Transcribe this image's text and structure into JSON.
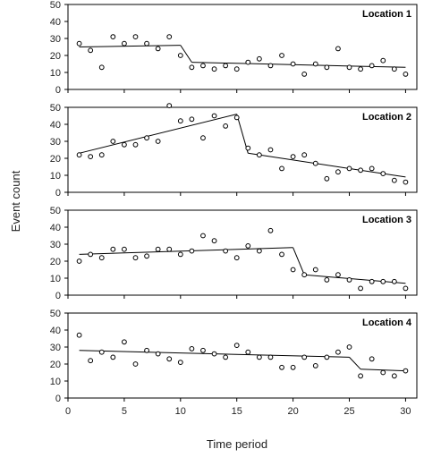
{
  "chart_data": {
    "type": "scatter",
    "xlabel": "Time period",
    "ylabel": "Event count",
    "xlim": [
      0,
      31
    ],
    "x_ticks": [
      0,
      5,
      10,
      15,
      20,
      25,
      30
    ],
    "ylim": [
      0,
      50
    ],
    "y_ticks": [
      0,
      10,
      20,
      30,
      40,
      50
    ],
    "grid": false,
    "panels": [
      {
        "title": "Location 1",
        "points": [
          [
            1,
            27
          ],
          [
            2,
            23
          ],
          [
            3,
            13
          ],
          [
            4,
            31
          ],
          [
            5,
            27
          ],
          [
            6,
            31
          ],
          [
            7,
            27
          ],
          [
            8,
            24
          ],
          [
            9,
            31
          ],
          [
            10,
            20
          ],
          [
            11,
            13
          ],
          [
            12,
            14
          ],
          [
            13,
            12
          ],
          [
            14,
            14
          ],
          [
            15,
            12
          ],
          [
            16,
            16
          ],
          [
            17,
            18
          ],
          [
            18,
            14
          ],
          [
            19,
            20
          ],
          [
            20,
            15
          ],
          [
            21,
            9
          ],
          [
            22,
            15
          ],
          [
            23,
            13
          ],
          [
            24,
            24
          ],
          [
            25,
            13
          ],
          [
            26,
            12
          ],
          [
            27,
            14
          ],
          [
            28,
            17
          ],
          [
            29,
            12
          ],
          [
            30,
            9
          ]
        ],
        "fit": [
          [
            1,
            25
          ],
          [
            10,
            26
          ],
          [
            11,
            16
          ],
          [
            30,
            13
          ]
        ]
      },
      {
        "title": "Location 2",
        "points": [
          [
            1,
            22
          ],
          [
            2,
            21
          ],
          [
            3,
            22
          ],
          [
            4,
            30
          ],
          [
            5,
            28
          ],
          [
            6,
            28
          ],
          [
            7,
            32
          ],
          [
            8,
            30
          ],
          [
            9,
            51
          ],
          [
            10,
            42
          ],
          [
            11,
            43
          ],
          [
            12,
            32
          ],
          [
            13,
            45
          ],
          [
            14,
            39
          ],
          [
            15,
            44
          ],
          [
            16,
            26
          ],
          [
            17,
            22
          ],
          [
            18,
            25
          ],
          [
            19,
            14
          ],
          [
            20,
            21
          ],
          [
            21,
            22
          ],
          [
            22,
            17
          ],
          [
            23,
            8
          ],
          [
            24,
            12
          ],
          [
            25,
            14
          ],
          [
            26,
            13
          ],
          [
            27,
            14
          ],
          [
            28,
            11
          ],
          [
            29,
            7
          ],
          [
            30,
            6
          ]
        ],
        "fit": [
          [
            1,
            23
          ],
          [
            15,
            46
          ],
          [
            16,
            23
          ],
          [
            30,
            9
          ]
        ]
      },
      {
        "title": "Location 3",
        "points": [
          [
            1,
            20
          ],
          [
            2,
            24
          ],
          [
            3,
            22
          ],
          [
            4,
            27
          ],
          [
            5,
            27
          ],
          [
            6,
            22
          ],
          [
            7,
            23
          ],
          [
            8,
            27
          ],
          [
            9,
            27
          ],
          [
            10,
            24
          ],
          [
            11,
            26
          ],
          [
            12,
            35
          ],
          [
            13,
            32
          ],
          [
            14,
            26
          ],
          [
            15,
            22
          ],
          [
            16,
            29
          ],
          [
            17,
            26
          ],
          [
            18,
            38
          ],
          [
            19,
            24
          ],
          [
            20,
            15
          ],
          [
            21,
            12
          ],
          [
            22,
            15
          ],
          [
            23,
            9
          ],
          [
            24,
            12
          ],
          [
            25,
            9
          ],
          [
            26,
            4
          ],
          [
            27,
            8
          ],
          [
            28,
            8
          ],
          [
            29,
            8
          ],
          [
            30,
            4
          ]
        ],
        "fit": [
          [
            1,
            24
          ],
          [
            20,
            28
          ],
          [
            21,
            12
          ],
          [
            30,
            7
          ]
        ]
      },
      {
        "title": "Location 4",
        "points": [
          [
            1,
            37
          ],
          [
            2,
            22
          ],
          [
            3,
            27
          ],
          [
            4,
            24
          ],
          [
            5,
            33
          ],
          [
            6,
            20
          ],
          [
            7,
            28
          ],
          [
            8,
            26
          ],
          [
            9,
            23
          ],
          [
            10,
            21
          ],
          [
            11,
            29
          ],
          [
            12,
            28
          ],
          [
            13,
            26
          ],
          [
            14,
            24
          ],
          [
            15,
            31
          ],
          [
            16,
            27
          ],
          [
            17,
            24
          ],
          [
            18,
            24
          ],
          [
            19,
            18
          ],
          [
            20,
            18
          ],
          [
            21,
            24
          ],
          [
            22,
            19
          ],
          [
            23,
            24
          ],
          [
            24,
            27
          ],
          [
            25,
            30
          ],
          [
            26,
            13
          ],
          [
            27,
            23
          ],
          [
            28,
            15
          ],
          [
            29,
            13
          ],
          [
            30,
            16
          ]
        ],
        "fit": [
          [
            1,
            28
          ],
          [
            25,
            24
          ],
          [
            26,
            17
          ],
          [
            30,
            16
          ]
        ]
      }
    ]
  }
}
